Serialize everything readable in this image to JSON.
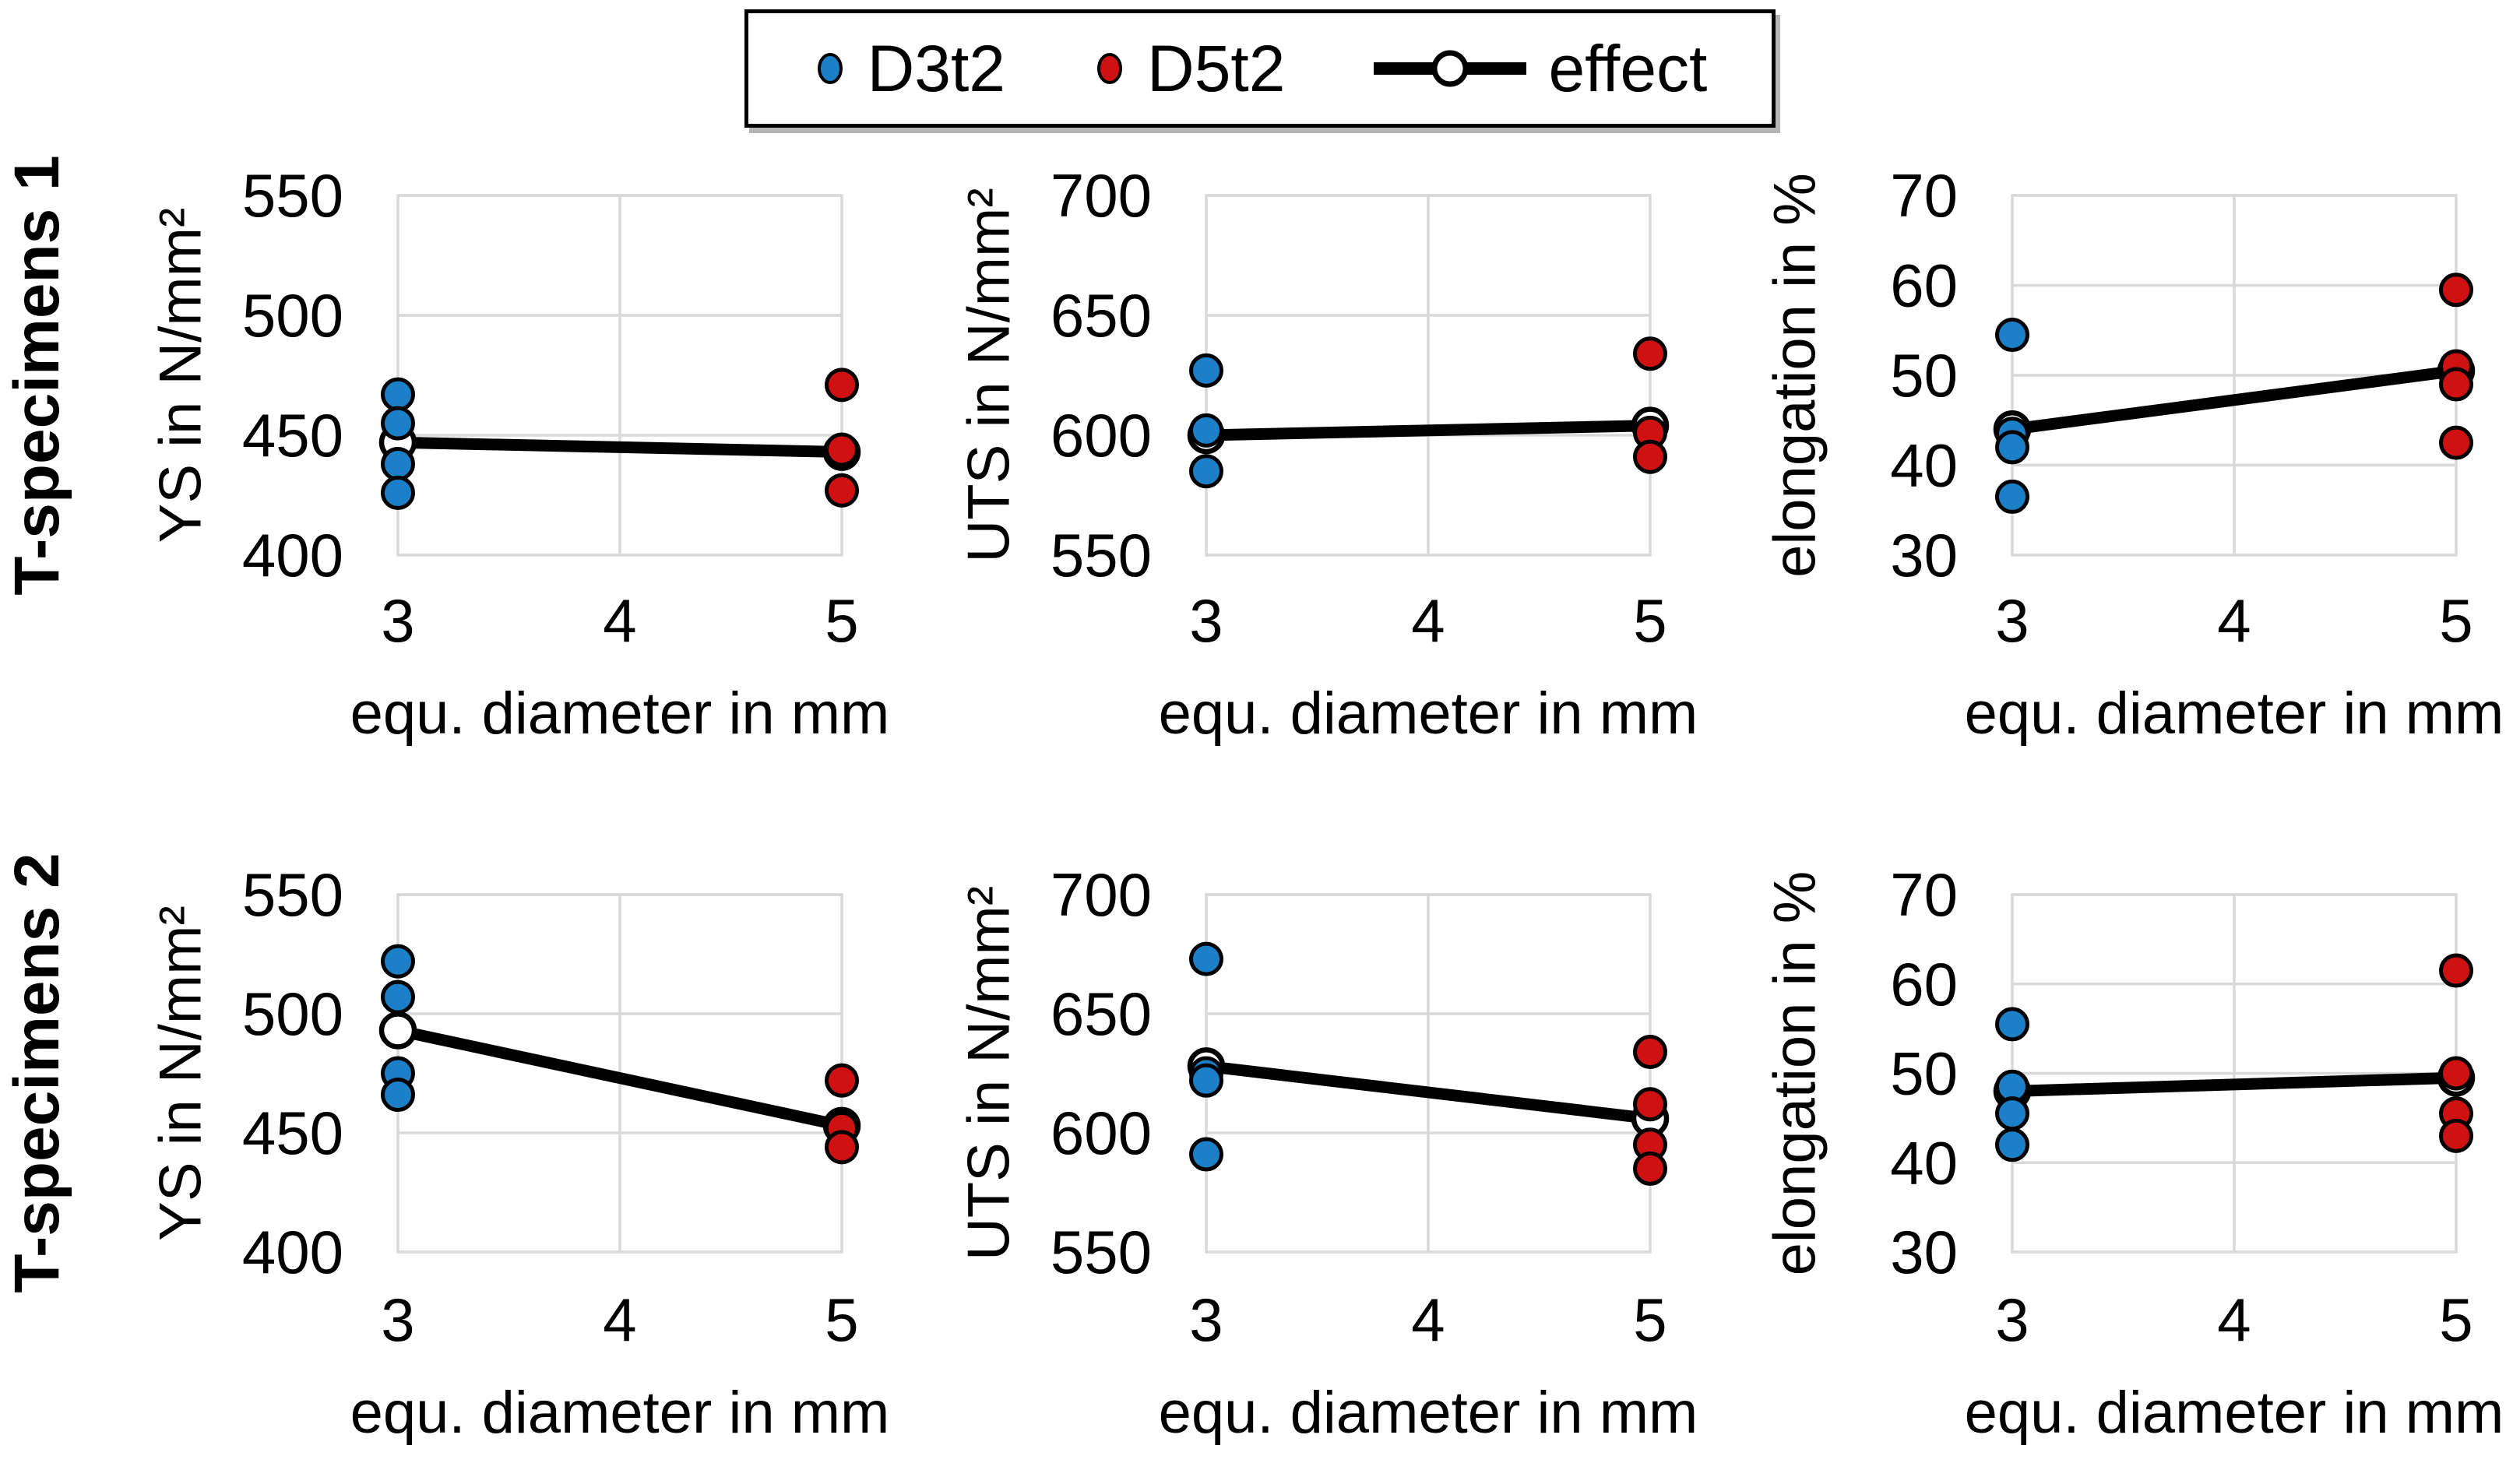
{
  "figure": {
    "background": "#FFFFFF",
    "description_rows": [
      "T-specimens 1",
      "T-specimens 2"
    ],
    "x_axis_title": "equ. diameter in mm"
  },
  "colors": {
    "d3t2": "#1B80C8",
    "d5t2": "#D01111",
    "effect": "#000000",
    "grid": "#D9D9D9",
    "text": "#000000",
    "background": "#FFFFFF"
  },
  "legend": {
    "items": [
      {
        "label": "D3t2",
        "marker": "dot",
        "color_key": "d3t2"
      },
      {
        "label": "D5t2",
        "marker": "dot",
        "color_key": "d5t2"
      },
      {
        "label": "effect",
        "marker": "line-circle",
        "color_key": "effect"
      }
    ]
  },
  "rows": [
    {
      "label": "T-specimens 1"
    },
    {
      "label": "T-specimens 2"
    }
  ],
  "chart_data": [
    {
      "type": "scatter",
      "group": "T-specimens 1",
      "xlabel": "equ. diameter in mm",
      "ylabel": "YS in N/mm²",
      "xlim": [
        3,
        5
      ],
      "xticks": [
        3,
        4,
        5
      ],
      "xgrid": [
        4
      ],
      "ylim": [
        400,
        550
      ],
      "yticks": [
        400,
        450,
        500,
        550
      ],
      "series": [
        {
          "name": "D3t2",
          "type": "scatter",
          "color_key": "d3t2",
          "x": 3,
          "values": [
            467,
            455,
            438,
            426
          ]
        },
        {
          "name": "D5t2",
          "type": "scatter",
          "color_key": "d5t2",
          "x": 5,
          "values": [
            471,
            444,
            427
          ]
        },
        {
          "name": "effect",
          "type": "line",
          "color_key": "effect",
          "points": [
            [
              3,
              447
            ],
            [
              5,
              443
            ]
          ]
        }
      ]
    },
    {
      "type": "scatter",
      "group": "T-specimens 1",
      "xlabel": "equ. diameter in mm",
      "ylabel": "UTS in N/mm²",
      "xlim": [
        3,
        5
      ],
      "xticks": [
        3,
        4,
        5
      ],
      "xgrid": [
        4
      ],
      "ylim": [
        550,
        700
      ],
      "yticks": [
        550,
        600,
        650,
        700
      ],
      "series": [
        {
          "name": "D3t2",
          "type": "scatter",
          "color_key": "d3t2",
          "x": 3,
          "values": [
            627,
            602,
            585
          ]
        },
        {
          "name": "D5t2",
          "type": "scatter",
          "color_key": "d5t2",
          "x": 5,
          "values": [
            634,
            601,
            591
          ]
        },
        {
          "name": "effect",
          "type": "line",
          "color_key": "effect",
          "points": [
            [
              3,
              600
            ],
            [
              5,
              604
            ]
          ]
        }
      ]
    },
    {
      "type": "scatter",
      "group": "T-specimens 1",
      "xlabel": "equ. diameter in mm",
      "ylabel": "elongation in %",
      "xlim": [
        3,
        5
      ],
      "xticks": [
        3,
        4,
        5
      ],
      "xgrid": [
        4
      ],
      "ylim": [
        30,
        70
      ],
      "yticks": [
        30,
        40,
        50,
        60,
        70
      ],
      "series": [
        {
          "name": "D3t2",
          "type": "scatter",
          "color_key": "d3t2",
          "x": 3,
          "values": [
            54.5,
            43.5,
            42,
            36.5
          ]
        },
        {
          "name": "D5t2",
          "type": "scatter",
          "color_key": "d5t2",
          "x": 5,
          "values": [
            59.5,
            51,
            49,
            42.5
          ]
        },
        {
          "name": "effect",
          "type": "line",
          "color_key": "effect",
          "points": [
            [
              3,
              44
            ],
            [
              5,
              50.5
            ]
          ]
        }
      ]
    },
    {
      "type": "scatter",
      "group": "T-specimens 2",
      "xlabel": "equ. diameter in mm",
      "ylabel": "YS in N/mm²",
      "xlim": [
        3,
        5
      ],
      "xticks": [
        3,
        4,
        5
      ],
      "xgrid": [
        4
      ],
      "ylim": [
        400,
        550
      ],
      "yticks": [
        400,
        450,
        500,
        550
      ],
      "series": [
        {
          "name": "D3t2",
          "type": "scatter",
          "color_key": "d3t2",
          "x": 3,
          "values": [
            522,
            507,
            475,
            466
          ]
        },
        {
          "name": "D5t2",
          "type": "scatter",
          "color_key": "d5t2",
          "x": 5,
          "values": [
            472,
            452,
            444
          ]
        },
        {
          "name": "effect",
          "type": "line",
          "color_key": "effect",
          "points": [
            [
              3,
              493
            ],
            [
              5,
              453
            ]
          ]
        }
      ]
    },
    {
      "type": "scatter",
      "group": "T-specimens 2",
      "xlabel": "equ. diameter in mm",
      "ylabel": "UTS in N/mm²",
      "xlim": [
        3,
        5
      ],
      "xticks": [
        3,
        4,
        5
      ],
      "xgrid": [
        4
      ],
      "ylim": [
        550,
        700
      ],
      "yticks": [
        550,
        600,
        650,
        700
      ],
      "series": [
        {
          "name": "D3t2",
          "type": "scatter",
          "color_key": "d3t2",
          "x": 3,
          "values": [
            673,
            625,
            622,
            591
          ]
        },
        {
          "name": "D5t2",
          "type": "scatter",
          "color_key": "d5t2",
          "x": 5,
          "values": [
            634,
            612,
            595,
            585
          ]
        },
        {
          "name": "effect",
          "type": "line",
          "color_key": "effect",
          "points": [
            [
              3,
              628
            ],
            [
              5,
              606
            ]
          ]
        }
      ]
    },
    {
      "type": "scatter",
      "group": "T-specimens 2",
      "xlabel": "equ. diameter in mm",
      "ylabel": "elongation in %",
      "xlim": [
        3,
        5
      ],
      "xticks": [
        3,
        4,
        5
      ],
      "xgrid": [
        4
      ],
      "ylim": [
        30,
        70
      ],
      "yticks": [
        30,
        40,
        50,
        60,
        70
      ],
      "series": [
        {
          "name": "D3t2",
          "type": "scatter",
          "color_key": "d3t2",
          "x": 3,
          "values": [
            55.5,
            48.5,
            45.5,
            42
          ]
        },
        {
          "name": "D5t2",
          "type": "scatter",
          "color_key": "d5t2",
          "x": 5,
          "values": [
            61.5,
            50,
            45.5,
            43
          ]
        },
        {
          "name": "effect",
          "type": "line",
          "color_key": "effect",
          "points": [
            [
              3,
              48
            ],
            [
              5,
              49.5
            ]
          ]
        }
      ]
    }
  ]
}
